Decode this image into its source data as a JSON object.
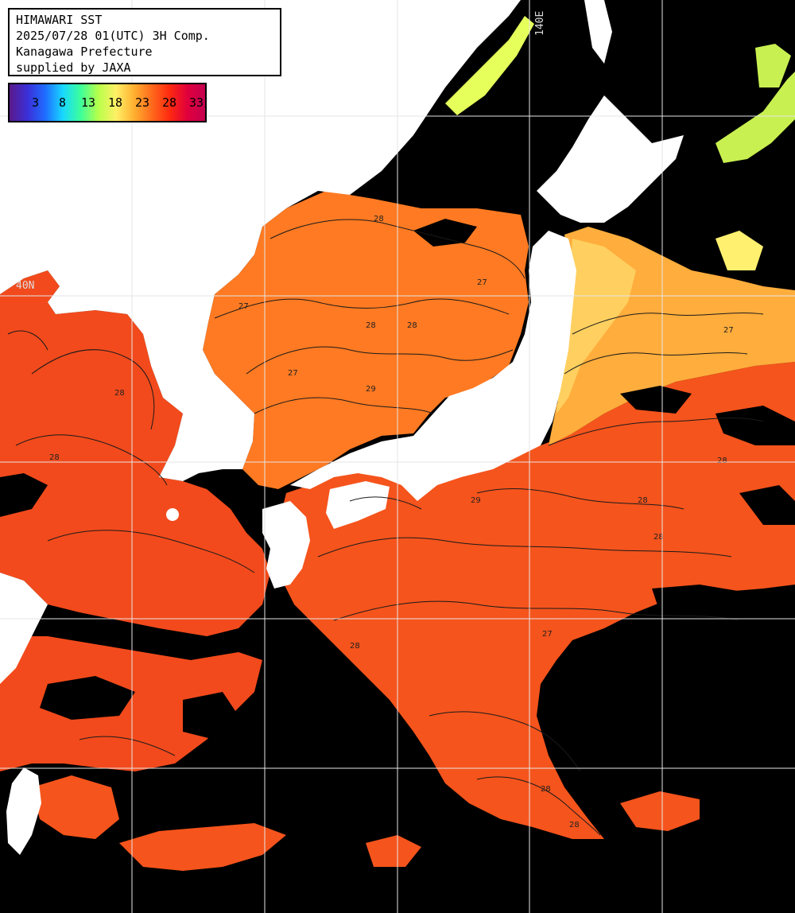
{
  "header": {
    "line1": "HIMAWARI SST",
    "line2": "2025/07/28 01(UTC) 3H Comp.",
    "line3": "Kanagawa Prefecture",
    "line4": "supplied by JAXA"
  },
  "colorbar": {
    "ticks": [
      "3",
      "8",
      "13",
      "18",
      "23",
      "28",
      "33"
    ],
    "stops": [
      "#5a1a8a",
      "#3b2fd8",
      "#1e6cff",
      "#18d8ff",
      "#3cff9a",
      "#b8ff4a",
      "#fff066",
      "#ffb030",
      "#ff6a1c",
      "#ff2a10",
      "#e0003c",
      "#c40050"
    ]
  },
  "graticule": {
    "lon_label": "140E",
    "lat_label": "40N"
  },
  "contour_labels": [
    "28",
    "27",
    "28",
    "28",
    "27",
    "29",
    "28",
    "27",
    "28",
    "29",
    "28",
    "28",
    "27",
    "28",
    "28",
    "27",
    "28",
    "28"
  ],
  "colors": {
    "land": "#ffffff",
    "cloud": "#000000",
    "sea_28": "#ff6a1c",
    "sea_29": "#f2461a",
    "sea_27": "#ff8a2a",
    "sea_cool": "#ffc050",
    "sea_cold": "#b8ff4a",
    "grid": "#e6e6e6"
  }
}
